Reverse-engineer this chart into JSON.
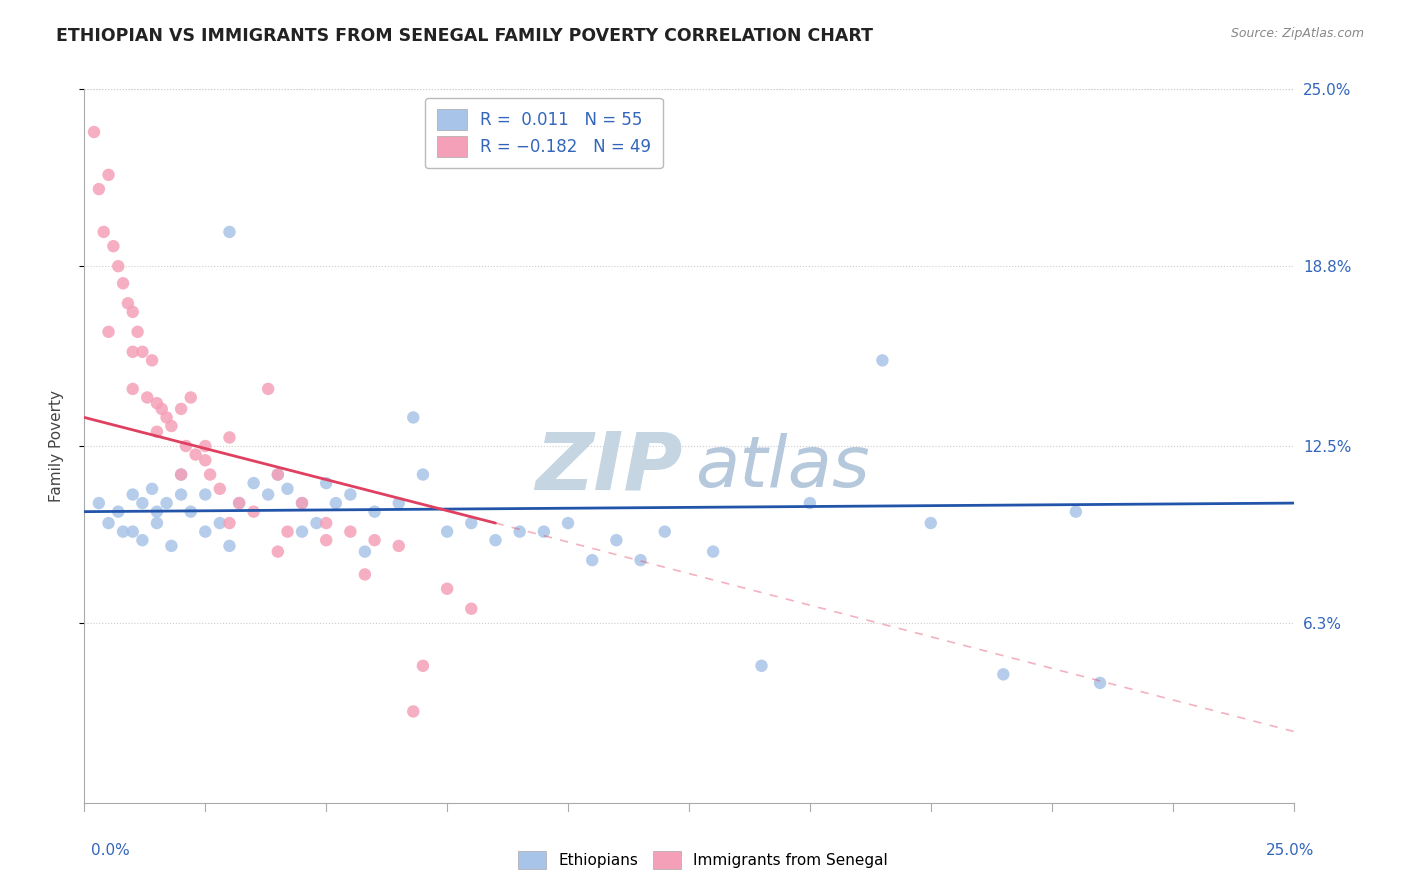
{
  "title": "ETHIOPIAN VS IMMIGRANTS FROM SENEGAL FAMILY POVERTY CORRELATION CHART",
  "source": "Source: ZipAtlas.com",
  "ylabel": "Family Poverty",
  "y_ticks": [
    6.3,
    12.5,
    18.8,
    25.0
  ],
  "y_tick_labels": [
    "6.3%",
    "12.5%",
    "18.8%",
    "25.0%"
  ],
  "xmin": 0.0,
  "xmax": 25.0,
  "ymin": 0.0,
  "ymax": 25.0,
  "R_blue": 0.011,
  "N_blue": 55,
  "R_pink": -0.182,
  "N_pink": 49,
  "color_blue": "#a8c4e8",
  "color_pink": "#f4a0b8",
  "line_color_blue": "#2255aa",
  "line_color_pink": "#e04060",
  "watermark_zip_color": "#c8d8e8",
  "watermark_atlas_color": "#b0cce0",
  "blue_scatter_x": [
    0.3,
    0.5,
    0.7,
    0.8,
    1.0,
    1.0,
    1.2,
    1.2,
    1.4,
    1.5,
    1.5,
    1.7,
    1.8,
    2.0,
    2.0,
    2.2,
    2.5,
    2.5,
    2.8,
    3.0,
    3.2,
    3.5,
    3.8,
    4.0,
    4.2,
    4.5,
    4.8,
    5.0,
    5.2,
    5.5,
    6.0,
    6.5,
    7.0,
    7.5,
    8.0,
    8.5,
    9.0,
    10.0,
    10.5,
    11.0,
    12.0,
    13.0,
    14.0,
    15.0,
    16.5,
    17.5,
    19.0,
    21.0,
    3.0,
    4.5,
    5.8,
    6.8,
    9.5,
    11.5,
    20.5
  ],
  "blue_scatter_y": [
    10.5,
    9.8,
    10.2,
    9.5,
    10.8,
    9.5,
    10.5,
    9.2,
    11.0,
    10.2,
    9.8,
    10.5,
    9.0,
    10.8,
    11.5,
    10.2,
    9.5,
    10.8,
    9.8,
    20.0,
    10.5,
    11.2,
    10.8,
    11.5,
    11.0,
    10.5,
    9.8,
    11.2,
    10.5,
    10.8,
    10.2,
    10.5,
    11.5,
    9.5,
    9.8,
    9.2,
    9.5,
    9.8,
    8.5,
    9.2,
    9.5,
    8.8,
    4.8,
    10.5,
    15.5,
    9.8,
    4.5,
    4.2,
    9.0,
    9.5,
    8.8,
    13.5,
    9.5,
    8.5,
    10.2
  ],
  "pink_scatter_x": [
    0.2,
    0.3,
    0.4,
    0.5,
    0.6,
    0.7,
    0.8,
    0.9,
    1.0,
    1.0,
    1.1,
    1.2,
    1.3,
    1.4,
    1.5,
    1.6,
    1.7,
    1.8,
    2.0,
    2.1,
    2.2,
    2.3,
    2.5,
    2.6,
    2.8,
    3.0,
    3.2,
    3.5,
    3.8,
    4.0,
    4.2,
    4.5,
    5.0,
    5.5,
    6.0,
    6.5,
    7.0,
    0.5,
    1.0,
    1.5,
    2.0,
    2.5,
    3.0,
    4.0,
    5.0,
    7.5,
    8.0,
    5.8,
    6.8
  ],
  "pink_scatter_y": [
    23.5,
    21.5,
    20.0,
    22.0,
    19.5,
    18.8,
    18.2,
    17.5,
    14.5,
    17.2,
    16.5,
    15.8,
    14.2,
    15.5,
    14.0,
    13.8,
    13.5,
    13.2,
    13.8,
    12.5,
    14.2,
    12.2,
    12.5,
    11.5,
    11.0,
    12.8,
    10.5,
    10.2,
    14.5,
    11.5,
    9.5,
    10.5,
    9.8,
    9.5,
    9.2,
    9.0,
    4.8,
    16.5,
    15.8,
    13.0,
    11.5,
    12.0,
    9.8,
    8.8,
    9.2,
    7.5,
    6.8,
    8.0,
    3.2
  ],
  "blue_line_x0": 0.0,
  "blue_line_x1": 25.0,
  "blue_line_y0": 10.2,
  "blue_line_y1": 10.5,
  "pink_solid_x0": 0.0,
  "pink_solid_x1": 8.5,
  "pink_solid_y0": 13.5,
  "pink_solid_y1": 9.8,
  "pink_dash_x0": 8.5,
  "pink_dash_x1": 25.0,
  "pink_dash_y0": 9.8,
  "pink_dash_y1": 2.5
}
